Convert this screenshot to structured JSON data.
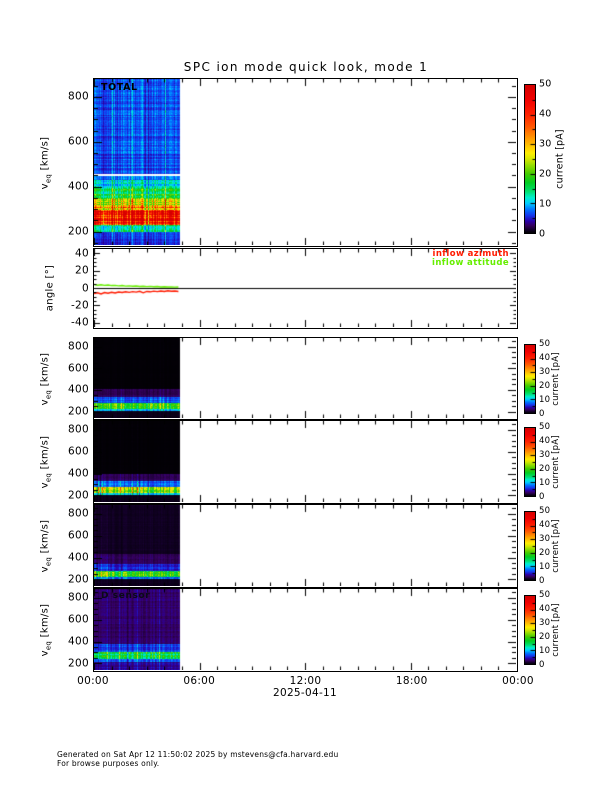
{
  "title": "SPC ion mode quick look, mode 1",
  "footer": {
    "line1": "Generated on Sat Apr 12 11:50:02 2025 by mstevens@cfa.harvard.edu",
    "line2": "For browse purposes only."
  },
  "x_axis": {
    "tick_labels": [
      "00:00",
      "06:00",
      "12:00",
      "18:00",
      "00:00"
    ],
    "date_label": "2025-04-11",
    "hours_total": 24,
    "major_tick_every_hours": 6,
    "minor_tick_every_hours": 1
  },
  "velocity_axis": {
    "label_v": "v",
    "label_sub": "eq",
    "label_unit": " [km/s]",
    "ylim_kms": [
      140,
      880
    ],
    "yticks": [
      200,
      400,
      600,
      800
    ],
    "minor_step": 50
  },
  "angle_panel": {
    "ylabel": "angle [°]",
    "ylim_deg": [
      -45,
      45
    ],
    "yticks": [
      -40,
      -20,
      0,
      20,
      40
    ],
    "minor_step": 5,
    "legend": [
      {
        "label": "inflow azimuth",
        "color_key": "azimuth"
      },
      {
        "label": "inflow attitude",
        "color_key": "attitude"
      }
    ]
  },
  "colorbar": {
    "label": "current [pA]",
    "min": 0,
    "max": 50,
    "ticks": [
      0,
      10,
      20,
      30,
      40,
      50
    ]
  },
  "colors": {
    "background": "#ffffff",
    "axis": "#000000",
    "azimuth": "#ff1a00",
    "attitude": "#66ee00",
    "colormap_stops": [
      [
        0,
        "#000000"
      ],
      [
        1.2,
        "#16002e"
      ],
      [
        2.5,
        "#36005e"
      ],
      [
        4,
        "#2b00a8"
      ],
      [
        6,
        "#1438ee"
      ],
      [
        8,
        "#0077ff"
      ],
      [
        10,
        "#00ccff"
      ],
      [
        12,
        "#00f0cc"
      ],
      [
        14,
        "#00e070"
      ],
      [
        17,
        "#00cc22"
      ],
      [
        20,
        "#44cc00"
      ],
      [
        23,
        "#99dd00"
      ],
      [
        25,
        "#d6e800"
      ],
      [
        27,
        "#ffee00"
      ],
      [
        30,
        "#ffbb00"
      ],
      [
        33,
        "#ff8800"
      ],
      [
        36,
        "#ff5500"
      ],
      [
        40,
        "#ff2200"
      ],
      [
        45,
        "#f20000"
      ],
      [
        50,
        "#d40000"
      ]
    ]
  },
  "chart_data": [
    {
      "type": "heatmap",
      "name": "total-spectrogram",
      "label": "TOTAL",
      "ylabel": "veq [km/s]",
      "units": "current [pA]",
      "data_hours": [
        0,
        4.9
      ],
      "white_line_kms": 455,
      "bands": [
        {
          "v_kms": [
            140,
            200
          ],
          "current_pA": 5.5
        },
        {
          "v_kms": [
            200,
            228
          ],
          "current_pA": 13
        },
        {
          "v_kms": [
            228,
            292
          ],
          "current_pA": 45
        },
        {
          "v_kms": [
            292,
            318
          ],
          "current_pA": 33
        },
        {
          "v_kms": [
            318,
            348
          ],
          "current_pA": 25
        },
        {
          "v_kms": [
            348,
            395
          ],
          "current_pA": 16
        },
        {
          "v_kms": [
            395,
            428
          ],
          "current_pA": 11
        },
        {
          "v_kms": [
            428,
            455
          ],
          "current_pA": 8
        },
        {
          "v_kms": [
            455,
            880
          ],
          "current_pA": 6.5
        }
      ]
    },
    {
      "type": "line",
      "name": "inflow-angles",
      "ylabel": "angle [°]",
      "data_hours": [
        0,
        4.8
      ],
      "x_hours": [
        0,
        0.2,
        0.4,
        0.6,
        0.8,
        1,
        1.2,
        1.4,
        1.6,
        1.8,
        2,
        2.2,
        2.4,
        2.6,
        2.8,
        3,
        3.2,
        3.4,
        3.6,
        3.8,
        4,
        4.2,
        4.4,
        4.6,
        4.8
      ],
      "series": [
        {
          "name": "inflow azimuth",
          "color_key": "azimuth",
          "values": [
            -6.5,
            -5.5,
            -6.8,
            -5.2,
            -6,
            -5,
            -5.8,
            -4.6,
            -5.2,
            -4.4,
            -5,
            -4.2,
            -4.8,
            -3.8,
            -5.6,
            -4,
            -4.4,
            -3.6,
            -4.2,
            -3.4,
            -4,
            -3.2,
            -3.8,
            -3.5,
            -4
          ]
        },
        {
          "name": "inflow attitude",
          "color_key": "attitude",
          "values": [
            4,
            3.2,
            3.8,
            3,
            3.4,
            2.8,
            3,
            2.5,
            2.8,
            2.2,
            2.5,
            2,
            2.3,
            1.8,
            2,
            1.6,
            1.9,
            1.4,
            1.7,
            1.2,
            1.5,
            1.1,
            1.3,
            1,
            1.2
          ]
        }
      ]
    },
    {
      "type": "heatmap",
      "name": "a-sensor-spectrogram",
      "label": "",
      "ylabel": "veq [km/s]",
      "units": "current [pA]",
      "data_hours": [
        0,
        4.9
      ],
      "bands": [
        {
          "v_kms": [
            140,
            205
          ],
          "current_pA": 0.6
        },
        {
          "v_kms": [
            205,
            225
          ],
          "current_pA": 9
        },
        {
          "v_kms": [
            225,
            282
          ],
          "current_pA": 20
        },
        {
          "v_kms": [
            282,
            335
          ],
          "current_pA": 6.5
        },
        {
          "v_kms": [
            335,
            405
          ],
          "current_pA": 2.2
        },
        {
          "v_kms": [
            405,
            880
          ],
          "current_pA": 0.15
        }
      ]
    },
    {
      "type": "heatmap",
      "name": "b-sensor-spectrogram",
      "label": "",
      "ylabel": "veq [km/s]",
      "units": "current [pA]",
      "data_hours": [
        0,
        4.9
      ],
      "bands": [
        {
          "v_kms": [
            140,
            205
          ],
          "current_pA": 0.6
        },
        {
          "v_kms": [
            205,
            222
          ],
          "current_pA": 10
        },
        {
          "v_kms": [
            222,
            278
          ],
          "current_pA": 22
        },
        {
          "v_kms": [
            278,
            335
          ],
          "current_pA": 7
        },
        {
          "v_kms": [
            335,
            395
          ],
          "current_pA": 2.4
        },
        {
          "v_kms": [
            395,
            880
          ],
          "current_pA": 0.15
        }
      ]
    },
    {
      "type": "heatmap",
      "name": "c-sensor-spectrogram",
      "label": "",
      "ylabel": "veq [km/s]",
      "units": "current [pA]",
      "data_hours": [
        0,
        4.9
      ],
      "bands": [
        {
          "v_kms": [
            140,
            200
          ],
          "current_pA": 0.8
        },
        {
          "v_kms": [
            200,
            218
          ],
          "current_pA": 8
        },
        {
          "v_kms": [
            218,
            280
          ],
          "current_pA": 18
        },
        {
          "v_kms": [
            280,
            340
          ],
          "current_pA": 5.5
        },
        {
          "v_kms": [
            340,
            430
          ],
          "current_pA": 2.2
        },
        {
          "v_kms": [
            430,
            880
          ],
          "current_pA": 0.9
        }
      ]
    },
    {
      "type": "heatmap",
      "name": "d-sensor-spectrogram",
      "label": "D sensor",
      "ylabel": "veq [km/s]",
      "units": "current [pA]",
      "data_hours": [
        0,
        4.9
      ],
      "bands": [
        {
          "v_kms": [
            140,
            210
          ],
          "current_pA": 3.5
        },
        {
          "v_kms": [
            210,
            240
          ],
          "current_pA": 6.5
        },
        {
          "v_kms": [
            240,
            300
          ],
          "current_pA": 15
        },
        {
          "v_kms": [
            300,
            380
          ],
          "current_pA": 6
        },
        {
          "v_kms": [
            380,
            880
          ],
          "current_pA": 2.6
        }
      ]
    }
  ]
}
